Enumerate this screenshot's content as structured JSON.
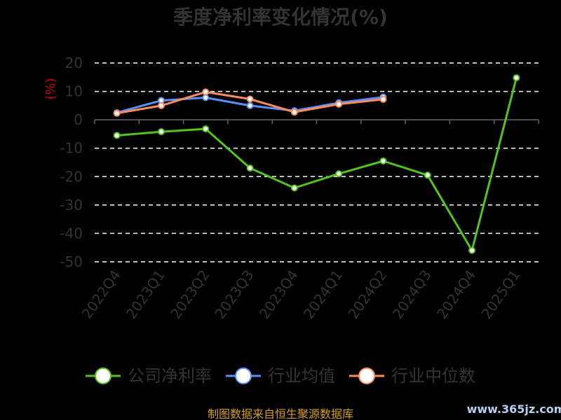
{
  "chart_data": {
    "type": "line",
    "title": "季度净利率变化情况(%)",
    "ylabel": "(%)",
    "ylim": [
      -50,
      20
    ],
    "yticks": [
      20,
      10,
      0,
      -10,
      -20,
      -30,
      -40,
      -50
    ],
    "categories": [
      "2022Q4",
      "2023Q1",
      "2023Q2",
      "2023Q3",
      "2023Q4",
      "2024Q1",
      "2024Q2",
      "2024Q3",
      "2024Q4",
      "2025Q1"
    ],
    "grid": true,
    "legend_position": "bottom",
    "series": [
      {
        "name": "公司净利率",
        "color": "#52c41a",
        "values": [
          -5.5,
          -4.2,
          -3.2,
          -17.0,
          -24.0,
          -19.0,
          -14.5,
          -19.5,
          -46.0,
          14.8
        ]
      },
      {
        "name": "行业均值",
        "color": "#5b8ff9",
        "values": [
          2.5,
          6.8,
          7.8,
          5.0,
          3.2,
          6.0,
          8.0,
          null,
          null,
          null
        ]
      },
      {
        "name": "行业中位数",
        "color": "#ff8c5a",
        "values": [
          2.3,
          5.0,
          9.8,
          7.3,
          2.7,
          5.5,
          7.2,
          null,
          null,
          null
        ]
      }
    ]
  },
  "footer": {
    "source": "制图数据来自恒生聚源数据库",
    "watermark": "www.365jz.com"
  }
}
